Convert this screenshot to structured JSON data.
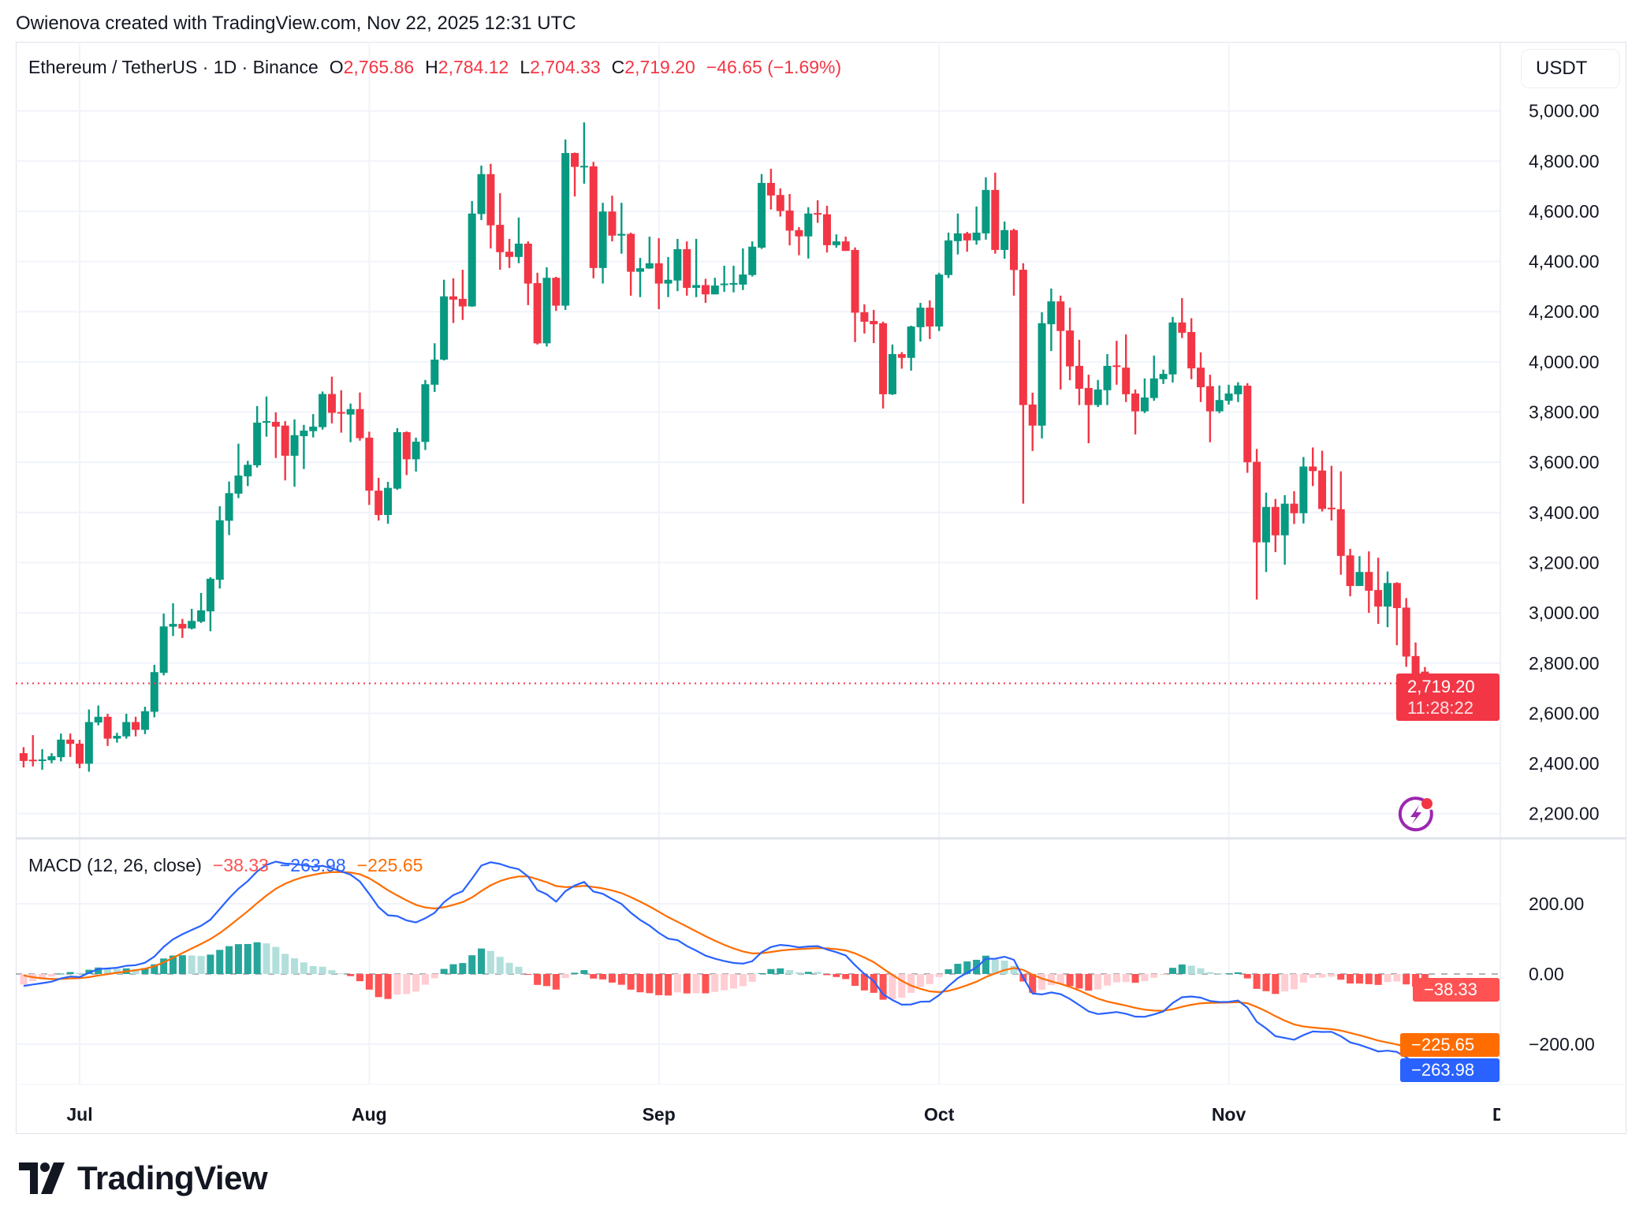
{
  "header": {
    "attribution": "Owienova created with TradingView.com, Nov 22, 2025 12:31 UTC"
  },
  "legend": {
    "symbol": "Ethereum / TetherUS · 1D · Binance",
    "o_label": "O",
    "o": "2,765.86",
    "h_label": "H",
    "h": "2,784.12",
    "l_label": "L",
    "l": "2,704.33",
    "c_label": "C",
    "c": "2,719.20",
    "change": "−46.65 (−1.69%)"
  },
  "currency_button": "USDT",
  "last_price_tag": {
    "price": "2,719.20",
    "countdown": "11:28:22"
  },
  "macd_legend": {
    "title": "MACD (12, 26, close)",
    "histogram": "−38.33",
    "macd": "−263.98",
    "signal": "−225.65"
  },
  "logo": "TradingView",
  "colors": {
    "up": "#089981",
    "down": "#F23645",
    "macd_line": "#2962FF",
    "signal_line": "#FF6D00",
    "hist_up_strong": "#26A69A",
    "hist_up_weak": "#B2DFDB",
    "hist_down_strong": "#FF5252",
    "hist_down_weak": "#FFCDD2",
    "alert_icon": "#9C27B0"
  },
  "icons": {
    "alert": "lightning-alert-icon"
  },
  "chart_data": [
    {
      "type": "candlestick",
      "interval": "1D",
      "x_tick_labels": [
        {
          "label": "Jul",
          "date": "2025-07-01"
        },
        {
          "label": "Aug",
          "date": "2025-08-01"
        },
        {
          "label": "Sep",
          "date": "2025-09-01"
        },
        {
          "label": "Oct",
          "date": "2025-10-01"
        },
        {
          "label": "Nov",
          "date": "2025-11-01"
        },
        {
          "label": "Dec",
          "date": "2025-12-01"
        }
      ],
      "y_ticks": [
        5000,
        4800,
        4600,
        4400,
        4200,
        4000,
        3800,
        3600,
        3400,
        3200,
        3000,
        2800,
        2600,
        2400,
        2200
      ],
      "y_tick_labels": [
        "5,000.00",
        "4,800.00",
        "4,600.00",
        "4,400.00",
        "4,200.00",
        "4,000.00",
        "3,800.00",
        "3,600.00",
        "3,400.00",
        "3,200.00",
        "3,000.00",
        "2,800.00",
        "2,600.00",
        "2,400.00",
        "2,200.00"
      ],
      "ylim": [
        2125,
        5060
      ],
      "last_close": 2719.2,
      "grid": true,
      "columns": [
        "date",
        "open",
        "high",
        "low",
        "close"
      ],
      "ohlc": [
        [
          "2025-06-25",
          2441,
          2465,
          2384,
          2410
        ],
        [
          "2025-06-26",
          2415,
          2513,
          2388,
          2413
        ],
        [
          "2025-06-27",
          2412,
          2457,
          2375,
          2416
        ],
        [
          "2025-06-28",
          2413,
          2441,
          2401,
          2429
        ],
        [
          "2025-06-29",
          2425,
          2519,
          2408,
          2495
        ],
        [
          "2025-06-30",
          2495,
          2519,
          2426,
          2478
        ],
        [
          "2025-07-01",
          2479,
          2494,
          2381,
          2399
        ],
        [
          "2025-07-02",
          2399,
          2615,
          2367,
          2565
        ],
        [
          "2025-07-03",
          2563,
          2631,
          2552,
          2586
        ],
        [
          "2025-07-04",
          2586,
          2598,
          2470,
          2499
        ],
        [
          "2025-07-05",
          2499,
          2522,
          2483,
          2510
        ],
        [
          "2025-07-06",
          2508,
          2598,
          2499,
          2565
        ],
        [
          "2025-07-07",
          2565,
          2586,
          2508,
          2534
        ],
        [
          "2025-07-08",
          2534,
          2626,
          2517,
          2608
        ],
        [
          "2025-07-09",
          2606,
          2793,
          2584,
          2764
        ],
        [
          "2025-07-10",
          2761,
          2997,
          2751,
          2946
        ],
        [
          "2025-07-11",
          2945,
          3038,
          2908,
          2956
        ],
        [
          "2025-07-12",
          2956,
          2976,
          2900,
          2938
        ],
        [
          "2025-07-13",
          2938,
          3016,
          2934,
          2968
        ],
        [
          "2025-07-14",
          2965,
          3079,
          2960,
          3010
        ],
        [
          "2025-07-15",
          3006,
          3142,
          2927,
          3136
        ],
        [
          "2025-07-16",
          3132,
          3425,
          3097,
          3369
        ],
        [
          "2025-07-17",
          3367,
          3523,
          3310,
          3477
        ],
        [
          "2025-07-18",
          3475,
          3674,
          3457,
          3547
        ],
        [
          "2025-07-19",
          3544,
          3606,
          3505,
          3590
        ],
        [
          "2025-07-20",
          3588,
          3824,
          3579,
          3758
        ],
        [
          "2025-07-21",
          3758,
          3862,
          3702,
          3764
        ],
        [
          "2025-07-22",
          3761,
          3799,
          3617,
          3742
        ],
        [
          "2025-07-23",
          3746,
          3764,
          3528,
          3626
        ],
        [
          "2025-07-24",
          3626,
          3771,
          3503,
          3708
        ],
        [
          "2025-07-25",
          3704,
          3749,
          3573,
          3726
        ],
        [
          "2025-07-26",
          3724,
          3792,
          3699,
          3742
        ],
        [
          "2025-07-27",
          3740,
          3882,
          3730,
          3872
        ],
        [
          "2025-07-28",
          3872,
          3941,
          3755,
          3797
        ],
        [
          "2025-07-29",
          3800,
          3887,
          3718,
          3797
        ],
        [
          "2025-07-30",
          3790,
          3834,
          3680,
          3812
        ],
        [
          "2025-07-31",
          3812,
          3878,
          3686,
          3696
        ],
        [
          "2025-08-01",
          3698,
          3722,
          3430,
          3487
        ],
        [
          "2025-08-02",
          3487,
          3538,
          3368,
          3390
        ],
        [
          "2025-08-03",
          3390,
          3522,
          3355,
          3498
        ],
        [
          "2025-08-04",
          3495,
          3736,
          3490,
          3720
        ],
        [
          "2025-08-05",
          3720,
          3723,
          3549,
          3612
        ],
        [
          "2025-08-06",
          3612,
          3698,
          3563,
          3682
        ],
        [
          "2025-08-07",
          3681,
          3928,
          3649,
          3911
        ],
        [
          "2025-08-08",
          3909,
          4074,
          3880,
          4009
        ],
        [
          "2025-08-09",
          4009,
          4327,
          4006,
          4261
        ],
        [
          "2025-08-10",
          4261,
          4333,
          4155,
          4248
        ],
        [
          "2025-08-11",
          4251,
          4367,
          4167,
          4221
        ],
        [
          "2025-08-12",
          4221,
          4641,
          4219,
          4591
        ],
        [
          "2025-08-13",
          4589,
          4782,
          4565,
          4748
        ],
        [
          "2025-08-14",
          4748,
          4789,
          4452,
          4544
        ],
        [
          "2025-08-15",
          4546,
          4672,
          4367,
          4437
        ],
        [
          "2025-08-16",
          4439,
          4490,
          4374,
          4418
        ],
        [
          "2025-08-17",
          4418,
          4575,
          4393,
          4471
        ],
        [
          "2025-08-18",
          4471,
          4480,
          4226,
          4312
        ],
        [
          "2025-08-19",
          4314,
          4355,
          4069,
          4074
        ],
        [
          "2025-08-20",
          4074,
          4377,
          4061,
          4335
        ],
        [
          "2025-08-21",
          4335,
          4339,
          4203,
          4224
        ],
        [
          "2025-08-22",
          4224,
          4886,
          4207,
          4832
        ],
        [
          "2025-08-23",
          4832,
          4834,
          4659,
          4777
        ],
        [
          "2025-08-24",
          4777,
          4954,
          4710,
          4781
        ],
        [
          "2025-08-25",
          4779,
          4797,
          4333,
          4374
        ],
        [
          "2025-08-26",
          4374,
          4634,
          4312,
          4599
        ],
        [
          "2025-08-27",
          4599,
          4662,
          4480,
          4503
        ],
        [
          "2025-08-28",
          4503,
          4634,
          4431,
          4510
        ],
        [
          "2025-08-29",
          4510,
          4515,
          4264,
          4359
        ],
        [
          "2025-08-30",
          4359,
          4414,
          4258,
          4373
        ],
        [
          "2025-08-31",
          4372,
          4499,
          4371,
          4393
        ],
        [
          "2025-09-01",
          4393,
          4493,
          4210,
          4312
        ],
        [
          "2025-09-02",
          4312,
          4418,
          4258,
          4327
        ],
        [
          "2025-09-03",
          4324,
          4490,
          4282,
          4449
        ],
        [
          "2025-09-04",
          4449,
          4480,
          4264,
          4295
        ],
        [
          "2025-09-05",
          4295,
          4490,
          4258,
          4306
        ],
        [
          "2025-09-06",
          4306,
          4331,
          4235,
          4269
        ],
        [
          "2025-09-07",
          4269,
          4335,
          4269,
          4304
        ],
        [
          "2025-09-08",
          4306,
          4383,
          4279,
          4312
        ],
        [
          "2025-09-09",
          4310,
          4383,
          4277,
          4314
        ],
        [
          "2025-09-10",
          4308,
          4452,
          4286,
          4348
        ],
        [
          "2025-09-11",
          4346,
          4480,
          4340,
          4459
        ],
        [
          "2025-09-12",
          4455,
          4748,
          4450,
          4713
        ],
        [
          "2025-09-13",
          4713,
          4769,
          4607,
          4663
        ],
        [
          "2025-09-14",
          4665,
          4691,
          4579,
          4601
        ],
        [
          "2025-09-15",
          4603,
          4669,
          4464,
          4523
        ],
        [
          "2025-09-16",
          4525,
          4537,
          4425,
          4500
        ],
        [
          "2025-09-17",
          4500,
          4616,
          4412,
          4591
        ],
        [
          "2025-09-18",
          4593,
          4644,
          4554,
          4589
        ],
        [
          "2025-09-19",
          4588,
          4622,
          4436,
          4465
        ],
        [
          "2025-09-20",
          4465,
          4508,
          4455,
          4480
        ],
        [
          "2025-09-21",
          4480,
          4499,
          4442,
          4442
        ],
        [
          "2025-09-22",
          4446,
          4456,
          4079,
          4196
        ],
        [
          "2025-09-23",
          4198,
          4229,
          4113,
          4160
        ],
        [
          "2025-09-24",
          4163,
          4207,
          4075,
          4150
        ],
        [
          "2025-09-25",
          4154,
          4160,
          3814,
          3871
        ],
        [
          "2025-09-26",
          3871,
          4069,
          3868,
          4031
        ],
        [
          "2025-09-27",
          4031,
          4039,
          3973,
          4016
        ],
        [
          "2025-09-28",
          4016,
          4144,
          3965,
          4141
        ],
        [
          "2025-09-29",
          4138,
          4235,
          4081,
          4216
        ],
        [
          "2025-09-30",
          4216,
          4245,
          4091,
          4141
        ],
        [
          "2025-10-01",
          4141,
          4355,
          4123,
          4348
        ],
        [
          "2025-10-02",
          4346,
          4515,
          4334,
          4484
        ],
        [
          "2025-10-03",
          4481,
          4591,
          4428,
          4512
        ],
        [
          "2025-10-04",
          4512,
          4518,
          4439,
          4484
        ],
        [
          "2025-10-05",
          4484,
          4619,
          4467,
          4515
        ],
        [
          "2025-10-06",
          4512,
          4735,
          4487,
          4685
        ],
        [
          "2025-10-07",
          4685,
          4754,
          4431,
          4446
        ],
        [
          "2025-10-08",
          4446,
          4559,
          4411,
          4525
        ],
        [
          "2025-10-09",
          4525,
          4530,
          4264,
          4366
        ],
        [
          "2025-10-10",
          4367,
          4393,
          3435,
          3828
        ],
        [
          "2025-10-11",
          3830,
          3877,
          3645,
          3746
        ],
        [
          "2025-10-12",
          3746,
          4198,
          3695,
          4154
        ],
        [
          "2025-10-13",
          4150,
          4292,
          4043,
          4241
        ],
        [
          "2025-10-14",
          4241,
          4264,
          3890,
          4123
        ],
        [
          "2025-10-15",
          4125,
          4216,
          3927,
          3982
        ],
        [
          "2025-10-16",
          3984,
          4088,
          3828,
          3893
        ],
        [
          "2025-10-17",
          3896,
          3949,
          3676,
          3828
        ],
        [
          "2025-10-18",
          3828,
          3928,
          3820,
          3890
        ],
        [
          "2025-10-19",
          3887,
          4031,
          3828,
          3984
        ],
        [
          "2025-10-20",
          3986,
          4084,
          3909,
          3982
        ],
        [
          "2025-10-21",
          3977,
          4109,
          3840,
          3871
        ],
        [
          "2025-10-22",
          3874,
          3890,
          3711,
          3803
        ],
        [
          "2025-10-23",
          3803,
          3934,
          3796,
          3858
        ],
        [
          "2025-10-24",
          3856,
          4025,
          3845,
          3934
        ],
        [
          "2025-10-25",
          3931,
          3969,
          3912,
          3952
        ],
        [
          "2025-10-26",
          3950,
          4179,
          3918,
          4157
        ],
        [
          "2025-10-27",
          4157,
          4254,
          4095,
          4116
        ],
        [
          "2025-10-28",
          4119,
          4174,
          3931,
          3974
        ],
        [
          "2025-10-29",
          3977,
          4038,
          3840,
          3899
        ],
        [
          "2025-10-30",
          3903,
          3949,
          3680,
          3803
        ],
        [
          "2025-10-31",
          3803,
          3906,
          3796,
          3848
        ],
        [
          "2025-11-01",
          3845,
          3909,
          3830,
          3874
        ],
        [
          "2025-11-02",
          3871,
          3919,
          3840,
          3906
        ],
        [
          "2025-11-03",
          3905,
          3915,
          3558,
          3600
        ],
        [
          "2025-11-04",
          3602,
          3653,
          3053,
          3281
        ],
        [
          "2025-11-05",
          3281,
          3479,
          3163,
          3422
        ],
        [
          "2025-11-06",
          3422,
          3454,
          3242,
          3309
        ],
        [
          "2025-11-07",
          3309,
          3469,
          3192,
          3435
        ],
        [
          "2025-11-08",
          3435,
          3485,
          3354,
          3397
        ],
        [
          "2025-11-09",
          3397,
          3621,
          3356,
          3583
        ],
        [
          "2025-11-10",
          3583,
          3659,
          3505,
          3565
        ],
        [
          "2025-11-11",
          3567,
          3646,
          3404,
          3414
        ],
        [
          "2025-11-12",
          3419,
          3586,
          3368,
          3415
        ],
        [
          "2025-11-13",
          3413,
          3564,
          3152,
          3227
        ],
        [
          "2025-11-14",
          3229,
          3255,
          3066,
          3107
        ],
        [
          "2025-11-15",
          3107,
          3226,
          3107,
          3163
        ],
        [
          "2025-11-16",
          3163,
          3245,
          3000,
          3088
        ],
        [
          "2025-11-17",
          3091,
          3220,
          2956,
          3025
        ],
        [
          "2025-11-18",
          3025,
          3165,
          2943,
          3119
        ],
        [
          "2025-11-19",
          3119,
          3122,
          2871,
          3019
        ],
        [
          "2025-11-20",
          3021,
          3059,
          2785,
          2826
        ],
        [
          "2025-11-21",
          2828,
          2882,
          2618,
          2757
        ],
        [
          "2025-11-22",
          2765.86,
          2784.12,
          2704.33,
          2719.2
        ]
      ]
    },
    {
      "type": "macd",
      "source": "close",
      "fast": 12,
      "slow": 26,
      "signal": 9,
      "y_ticks": [
        200,
        0,
        -200
      ],
      "y_tick_labels": [
        "200.00",
        "0.00",
        "−200.00"
      ],
      "ylim": [
        -320,
        330
      ],
      "last_values": {
        "histogram": -38.33,
        "macd": -263.98,
        "signal": -225.65
      }
    }
  ]
}
